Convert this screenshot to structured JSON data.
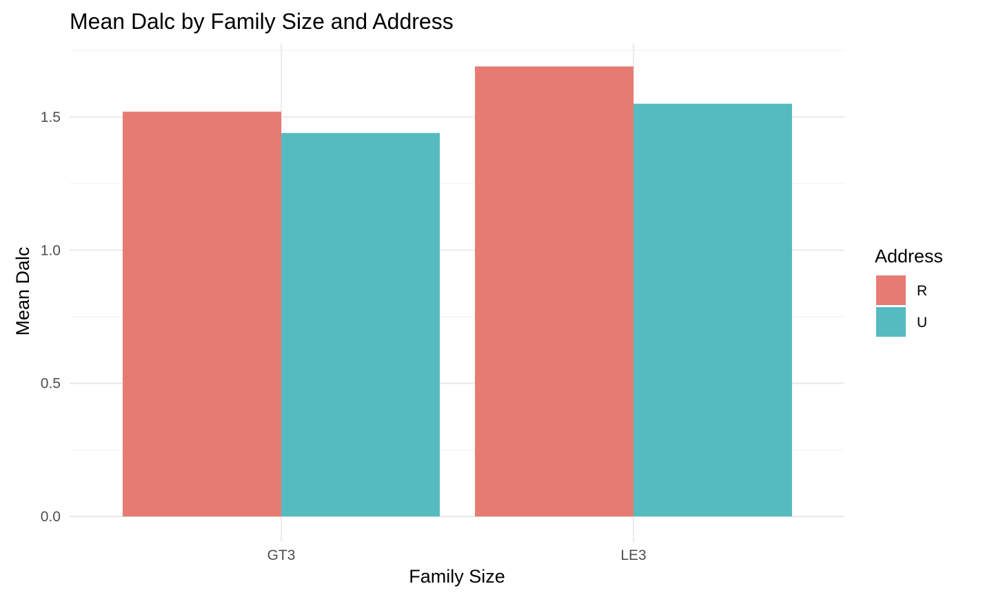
{
  "chart_data": {
    "type": "bar",
    "title": "Mean Dalc by Family Size and Address",
    "xlabel": "Family Size",
    "ylabel": "Mean Dalc",
    "categories": [
      "GT3",
      "LE3"
    ],
    "series": [
      {
        "name": "R",
        "color": "#E67B72",
        "values": [
          1.52,
          1.69
        ]
      },
      {
        "name": "U",
        "color": "#56BBC1",
        "values": [
          1.44,
          1.55
        ]
      }
    ],
    "yticks": [
      0.0,
      0.5,
      1.0,
      1.5
    ],
    "ytick_labels": [
      "0.0",
      "0.5",
      "1.0",
      "1.5"
    ],
    "ylim": [
      0,
      1.77
    ],
    "legend": {
      "title": "Address",
      "placement": "right"
    },
    "grid": true
  }
}
